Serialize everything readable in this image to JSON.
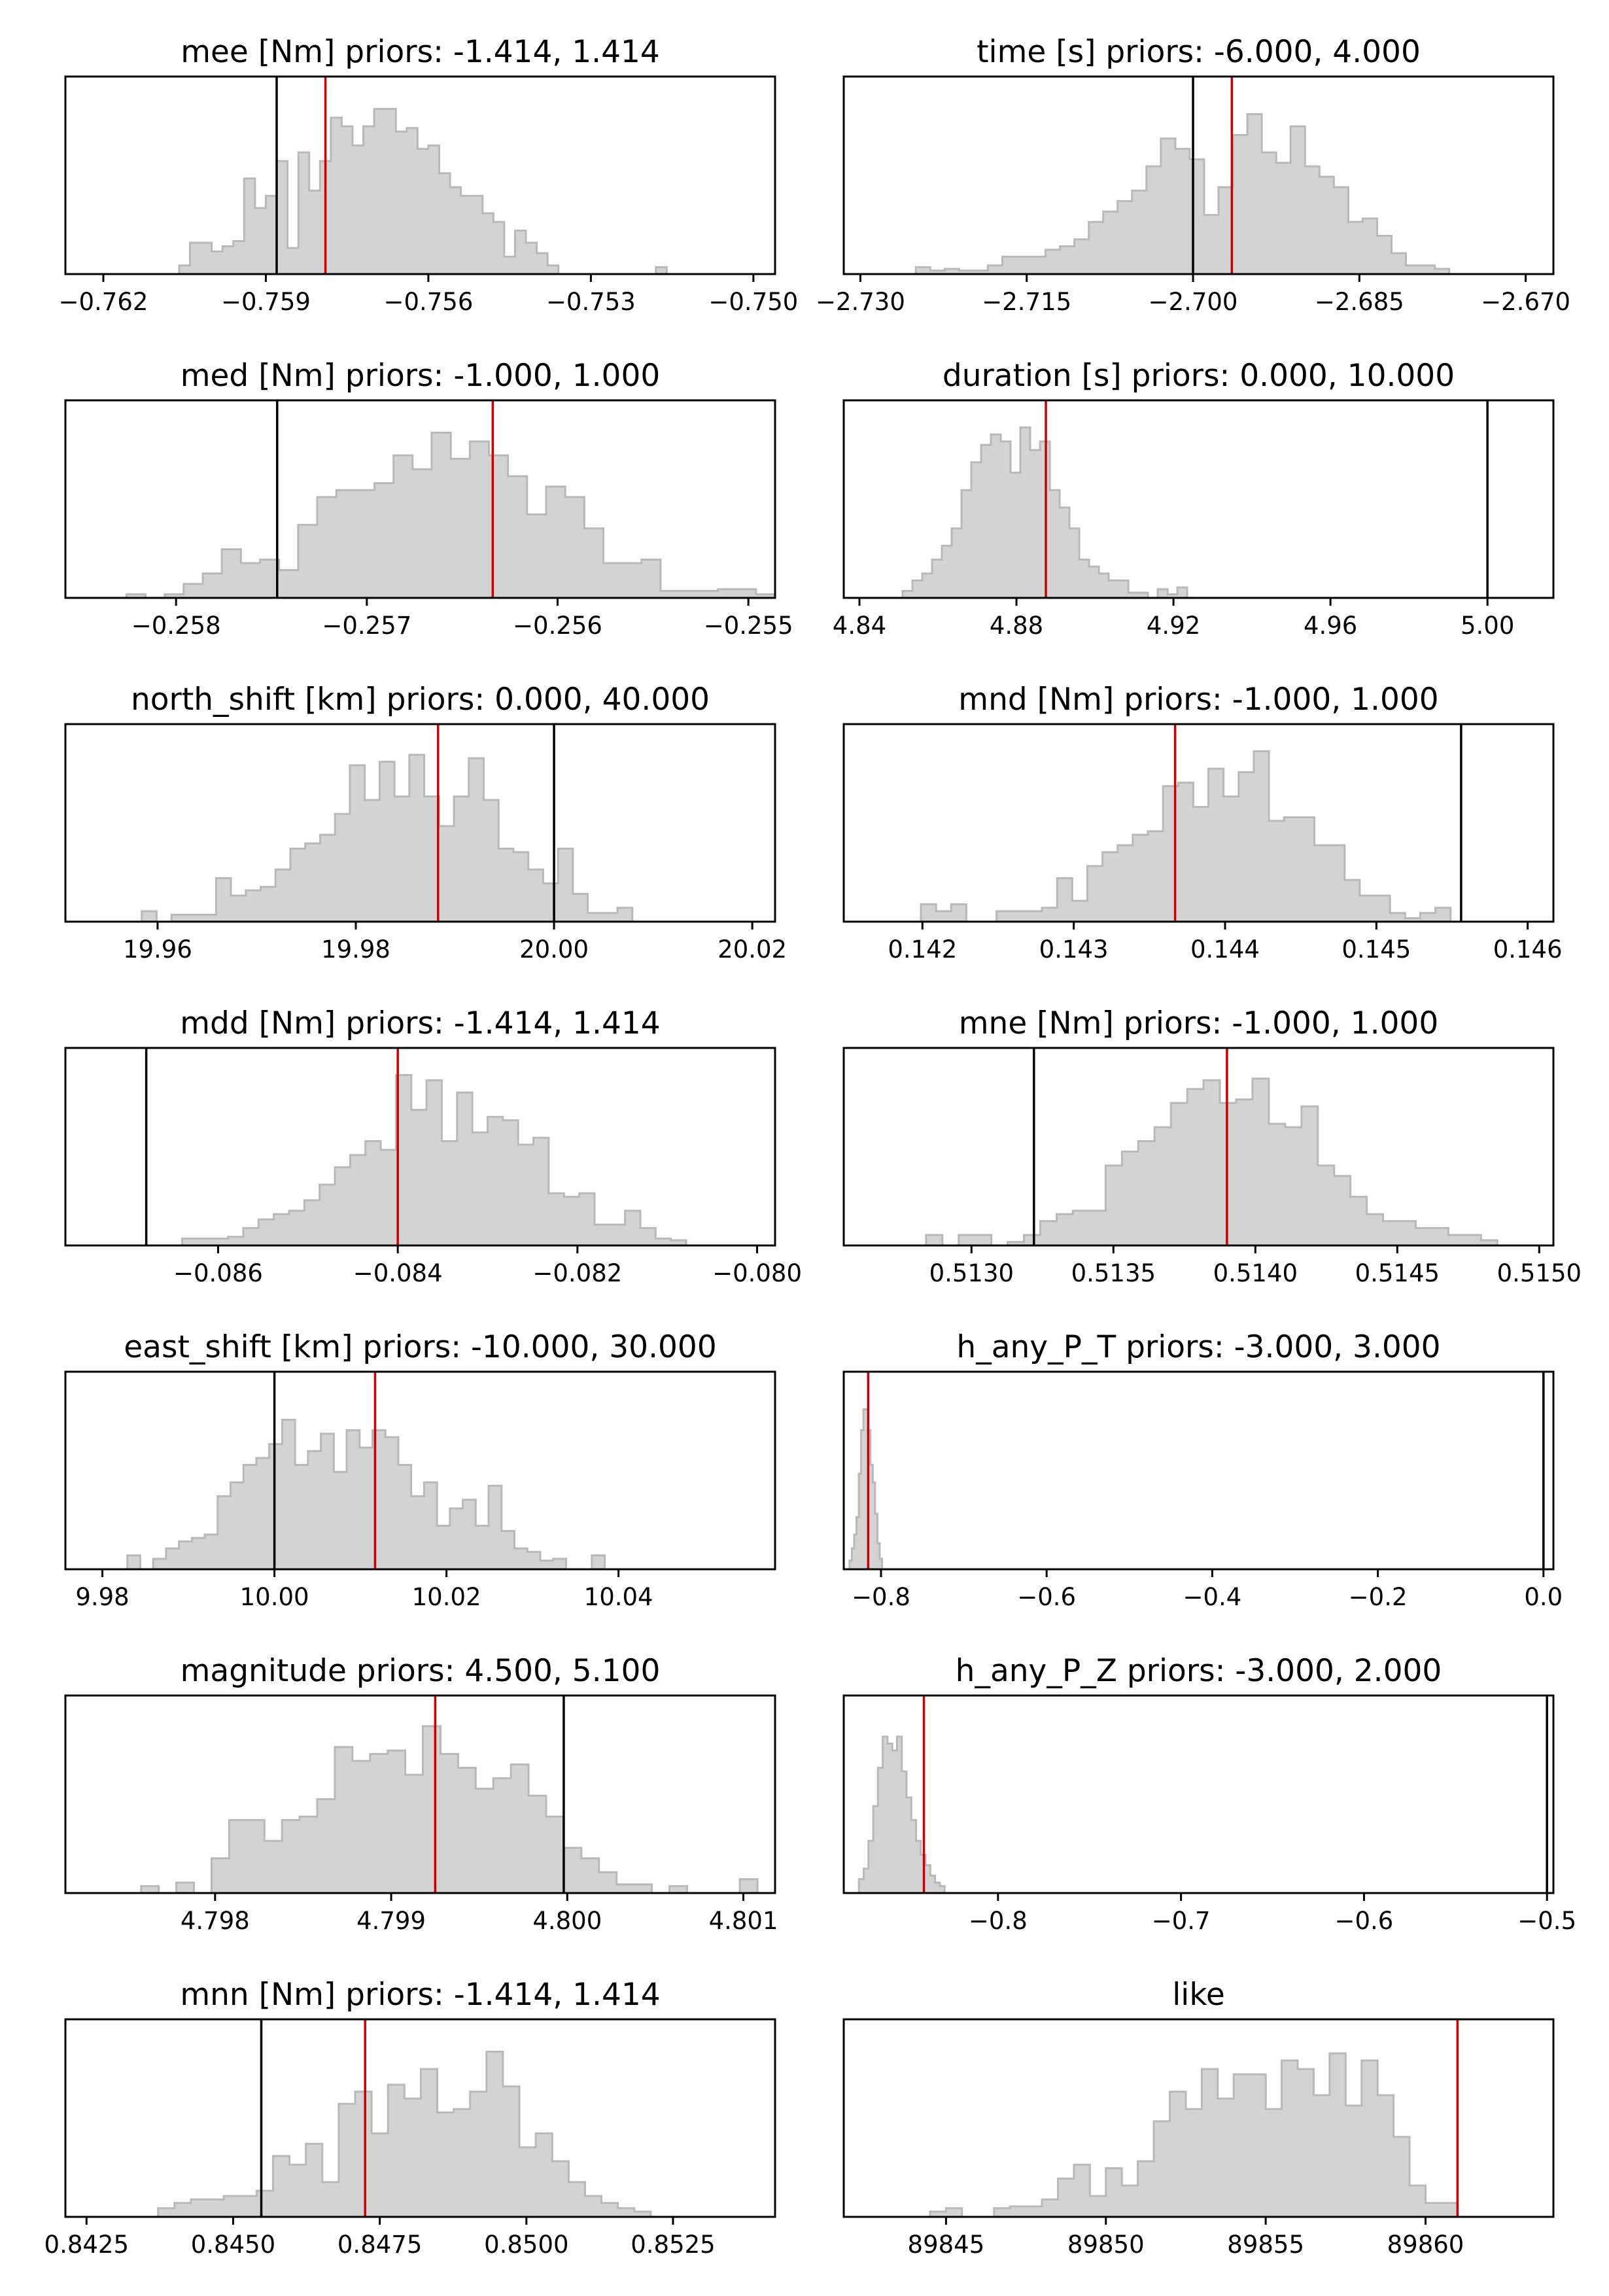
{
  "colors": {
    "hist_fill": "#d3d3d3",
    "hist_edge": "#b9b9b9",
    "true_line": "#000000",
    "estimate_line": "#cc0000",
    "frame": "#000000"
  },
  "chart_data": [
    {
      "type": "bar",
      "title": "mee [Nm] priors: -1.414, 1.414",
      "xlim": [
        -0.7627,
        -0.7496
      ],
      "xticks": [
        -0.762,
        -0.759,
        -0.756,
        -0.753,
        -0.75
      ],
      "xtick_labels": [
        "−0.762",
        "−0.759",
        "−0.756",
        "−0.753",
        "−0.750"
      ],
      "ylim": [
        0,
        1
      ],
      "bins": {
        "start": -0.7606,
        "width": 0.0002,
        "counts": [
          0.05,
          0.18,
          0.18,
          0.13,
          0.16,
          0.19,
          0.55,
          0.38,
          0.45,
          0.65,
          0.15,
          0.7,
          0.48,
          0.65,
          0.9,
          0.85,
          0.74,
          0.85,
          0.95,
          0.95,
          0.82,
          0.84,
          0.72,
          0.74,
          0.58,
          0.5,
          0.45,
          0.45,
          0.35,
          0.3,
          0.1,
          0.25,
          0.18,
          0.12,
          0.05,
          0,
          0,
          0,
          0,
          0,
          0,
          0,
          0,
          0,
          0.04
        ]
      },
      "true_value": -0.7588,
      "estimate": -0.7579
    },
    {
      "type": "bar",
      "title": "time [s] priors: -6.000, 4.000",
      "xlim": [
        -2.7315,
        -2.6675
      ],
      "xticks": [
        -2.73,
        -2.715,
        -2.7,
        -2.685,
        -2.67
      ],
      "xtick_labels": [
        "−2.730",
        "−2.715",
        "−2.700",
        "−2.685",
        "−2.670"
      ],
      "ylim": [
        0,
        1
      ],
      "bins": {
        "start": -2.725,
        "width": 0.0013,
        "counts": [
          0.04,
          0.02,
          0.03,
          0.02,
          0.02,
          0.05,
          0.1,
          0.1,
          0.1,
          0.14,
          0.16,
          0.2,
          0.3,
          0.36,
          0.42,
          0.48,
          0.62,
          0.78,
          0.72,
          0.66,
          0.34,
          0.5,
          0.8,
          0.92,
          0.7,
          0.64,
          0.85,
          0.62,
          0.56,
          0.5,
          0.3,
          0.32,
          0.22,
          0.12,
          0.05,
          0.05,
          0.03
        ]
      },
      "true_value": -2.7,
      "estimate": -2.6965
    },
    {
      "type": "bar",
      "title": "med [Nm] priors: -1.000, 1.000",
      "xlim": [
        -0.25858,
        -0.25486
      ],
      "xticks": [
        -0.258,
        -0.257,
        -0.256,
        -0.255
      ],
      "xtick_labels": [
        "−0.258",
        "−0.257",
        "−0.256",
        "−0.255"
      ],
      "ylim": [
        0,
        1
      ],
      "bins": {
        "start": -0.25826,
        "width": 0.0001,
        "counts": [
          0.02,
          0,
          0.02,
          0.08,
          0.14,
          0.28,
          0.2,
          0.22,
          0.16,
          0.42,
          0.58,
          0.62,
          0.62,
          0.66,
          0.82,
          0.74,
          0.95,
          0.8,
          0.9,
          0.82,
          0.7,
          0.48,
          0.64,
          0.58,
          0.4,
          0.2,
          0.2,
          0.22,
          0.04,
          0.04,
          0.04,
          0.05,
          0.05,
          0.02
        ]
      },
      "true_value": -0.25747,
      "estimate": -0.25634
    },
    {
      "type": "bar",
      "title": "duration [s] priors: 0.000, 10.000",
      "xlim": [
        4.836,
        5.0168
      ],
      "xticks": [
        4.84,
        4.88,
        4.92,
        4.96,
        5.0
      ],
      "xtick_labels": [
        "4.84",
        "4.88",
        "4.92",
        "4.96",
        "5.00"
      ],
      "ylim": [
        0,
        1
      ],
      "bins": {
        "start": 4.851,
        "width": 0.0025,
        "counts": [
          0.04,
          0.1,
          0.14,
          0.22,
          0.3,
          0.4,
          0.62,
          0.78,
          0.88,
          0.94,
          0.9,
          0.72,
          0.98,
          0.85,
          0.9,
          0.62,
          0.52,
          0.4,
          0.22,
          0.18,
          0.14,
          0.1,
          0.1,
          0.03,
          0.03,
          0,
          0.05,
          0.02,
          0.06
        ]
      },
      "true_value": 5.0,
      "estimate": 4.8875
    },
    {
      "type": "bar",
      "title": "north_shift [km] priors: 0.000, 40.000",
      "xlim": [
        19.9507,
        20.0223
      ],
      "xticks": [
        19.96,
        19.98,
        20.0,
        20.02
      ],
      "xtick_labels": [
        "19.96",
        "19.98",
        "20.00",
        "20.02"
      ],
      "ylim": [
        0,
        1
      ],
      "bins": {
        "start": 19.9584,
        "width": 0.0015,
        "counts": [
          0.06,
          0,
          0.04,
          0.04,
          0.04,
          0.25,
          0.15,
          0.18,
          0.2,
          0.3,
          0.42,
          0.45,
          0.5,
          0.62,
          0.9,
          0.7,
          0.92,
          0.72,
          0.96,
          0.72,
          0.55,
          0.72,
          0.94,
          0.7,
          0.42,
          0.4,
          0.3,
          0.22,
          0.42,
          0.16,
          0.05,
          0.05,
          0.08
        ]
      },
      "true_value": 20.0,
      "estimate": 19.9883
    },
    {
      "type": "bar",
      "title": "mnd [Nm] priors: -1.000, 1.000",
      "xlim": [
        0.14148,
        0.14617
      ],
      "xticks": [
        0.142,
        0.143,
        0.144,
        0.145,
        0.146
      ],
      "xtick_labels": [
        "0.142",
        "0.143",
        "0.144",
        "0.145",
        "0.146"
      ],
      "ylim": [
        0,
        1
      ],
      "bins": {
        "start": 0.14199,
        "width": 0.0001,
        "counts": [
          0.1,
          0.06,
          0.1,
          0,
          0,
          0.06,
          0.06,
          0.06,
          0.08,
          0.25,
          0.12,
          0.32,
          0.4,
          0.44,
          0.5,
          0.52,
          0.78,
          0.8,
          0.66,
          0.88,
          0.72,
          0.86,
          0.98,
          0.58,
          0.6,
          0.6,
          0.44,
          0.44,
          0.24,
          0.15,
          0.15,
          0.05,
          0.02,
          0.05,
          0.08
        ]
      },
      "true_value": 0.14556,
      "estimate": 0.14367
    },
    {
      "type": "bar",
      "title": "mdd [Nm] priors: -1.414, 1.414",
      "xlim": [
        -0.0877,
        -0.0798
      ],
      "xticks": [
        -0.086,
        -0.084,
        -0.082,
        -0.08
      ],
      "xtick_labels": [
        "−0.086",
        "−0.084",
        "−0.082",
        "−0.080"
      ],
      "ylim": [
        0,
        1
      ],
      "bins": {
        "start": -0.0864,
        "width": 0.00017,
        "counts": [
          0.04,
          0.04,
          0.04,
          0.05,
          0.1,
          0.15,
          0.18,
          0.2,
          0.26,
          0.35,
          0.45,
          0.52,
          0.6,
          0.55,
          0.98,
          0.78,
          0.95,
          0.6,
          0.88,
          0.65,
          0.74,
          0.72,
          0.58,
          0.62,
          0.3,
          0.28,
          0.3,
          0.12,
          0.12,
          0.2,
          0.1,
          0.04,
          0.03
        ]
      },
      "true_value": -0.0868,
      "estimate": -0.084
    },
    {
      "type": "bar",
      "title": "mne [Nm] priors: -1.000, 1.000",
      "xlim": [
        0.51255,
        0.51505
      ],
      "xticks": [
        0.513,
        0.5135,
        0.514,
        0.5145,
        0.515
      ],
      "xtick_labels": [
        "0.5130",
        "0.5135",
        "0.5140",
        "0.5145",
        "0.5150"
      ],
      "ylim": [
        0,
        1
      ],
      "bins": {
        "start": 0.51284,
        "width": 5.75e-05,
        "counts": [
          0.06,
          0,
          0.06,
          0.06,
          0,
          0.02,
          0.06,
          0.14,
          0.18,
          0.2,
          0.2,
          0.46,
          0.54,
          0.6,
          0.68,
          0.82,
          0.9,
          0.95,
          0.82,
          0.84,
          0.96,
          0.7,
          0.68,
          0.8,
          0.46,
          0.4,
          0.28,
          0.18,
          0.14,
          0.14,
          0.1,
          0.1,
          0.06,
          0.06,
          0.03
        ]
      },
      "true_value": 0.51322,
      "estimate": 0.5139
    },
    {
      "type": "bar",
      "title": "east_shift [km] priors: -10.000, 30.000",
      "xlim": [
        9.9757,
        10.0582
      ],
      "xticks": [
        9.98,
        10.0,
        10.02,
        10.04
      ],
      "xtick_labels": [
        "9.98",
        "10.00",
        "10.02",
        "10.04"
      ],
      "ylim": [
        0,
        1
      ],
      "bins": {
        "start": 9.9829,
        "width": 0.0015,
        "counts": [
          0.08,
          0,
          0.06,
          0.12,
          0.16,
          0.18,
          0.2,
          0.42,
          0.5,
          0.6,
          0.64,
          0.72,
          0.86,
          0.6,
          0.68,
          0.78,
          0.56,
          0.8,
          0.7,
          0.8,
          0.76,
          0.6,
          0.42,
          0.5,
          0.25,
          0.35,
          0.4,
          0.25,
          0.48,
          0.22,
          0.12,
          0.1,
          0.05,
          0.06,
          0,
          0,
          0.08
        ]
      },
      "true_value": 10.0,
      "estimate": 10.0117
    },
    {
      "type": "bar",
      "title": "h_any_P_T  priors: -3.000, 3.000",
      "xlim": [
        -0.845,
        0.012
      ],
      "xticks": [
        -0.8,
        -0.6,
        -0.4,
        -0.2,
        0.0
      ],
      "xtick_labels": [
        "−0.8",
        "−0.6",
        "−0.4",
        "−0.2",
        "0.0"
      ],
      "ylim": [
        0,
        1
      ],
      "bins": {
        "start": -0.838,
        "width": 0.0028,
        "counts": [
          0.05,
          0.12,
          0.2,
          0.3,
          0.55,
          0.8,
          0.92,
          0.92,
          0.8,
          0.6,
          0.5,
          0.32,
          0.15,
          0.06
        ]
      },
      "true_value": 0.0,
      "estimate": -0.8155
    },
    {
      "type": "bar",
      "title": "magnitude  priors: 4.500, 5.100",
      "xlim": [
        4.79715,
        4.80118
      ],
      "xticks": [
        4.798,
        4.799,
        4.8,
        4.801
      ],
      "xtick_labels": [
        "4.798",
        "4.799",
        "4.800",
        "4.801"
      ],
      "ylim": [
        0,
        1
      ],
      "bins": {
        "start": 4.79758,
        "width": 0.0001,
        "counts": [
          0.04,
          0,
          0.06,
          0,
          0.2,
          0.42,
          0.42,
          0.3,
          0.42,
          0.44,
          0.54,
          0.84,
          0.76,
          0.8,
          0.82,
          0.68,
          0.96,
          0.8,
          0.72,
          0.6,
          0.66,
          0.74,
          0.56,
          0.44,
          0.26,
          0.2,
          0.12,
          0.05,
          0.05,
          0,
          0.04,
          0,
          0,
          0,
          0.08
        ]
      },
      "true_value": 4.79998,
      "estimate": 4.79925
    },
    {
      "type": "bar",
      "title": "h_any_P_Z  priors: -3.000, 2.000",
      "xlim": [
        -0.8843,
        -0.4965
      ],
      "xticks": [
        -0.8,
        -0.7,
        -0.6,
        -0.5
      ],
      "xtick_labels": [
        "−0.8",
        "−0.7",
        "−0.6",
        "−0.5"
      ],
      "ylim": [
        0,
        1
      ],
      "bins": {
        "start": -0.876,
        "width": 0.0026,
        "counts": [
          0.08,
          0.14,
          0.3,
          0.5,
          0.72,
          0.9,
          0.86,
          0.82,
          0.9,
          0.7,
          0.55,
          0.42,
          0.3,
          0.22,
          0.16,
          0.1,
          0.06,
          0.04
        ]
      },
      "true_value": -0.5,
      "estimate": -0.8405
    },
    {
      "type": "bar",
      "title": "mnn [Nm] priors: -1.414, 1.414",
      "xlim": [
        0.84214,
        0.85424
      ],
      "xticks": [
        0.8425,
        0.845,
        0.8475,
        0.85,
        0.8525
      ],
      "xtick_labels": [
        "0.8425",
        "0.8450",
        "0.8475",
        "0.8500",
        "0.8525"
      ],
      "ylim": [
        0,
        1
      ],
      "bins": {
        "start": 0.84372,
        "width": 0.00028,
        "counts": [
          0.05,
          0.08,
          0.1,
          0.1,
          0.12,
          0.12,
          0.15,
          0.35,
          0.3,
          0.42,
          0.2,
          0.65,
          0.72,
          0.48,
          0.76,
          0.68,
          0.85,
          0.6,
          0.62,
          0.72,
          0.95,
          0.75,
          0.4,
          0.48,
          0.32,
          0.2,
          0.12,
          0.08,
          0.05,
          0.03
        ]
      },
      "true_value": 0.84548,
      "estimate": 0.84725
    },
    {
      "type": "bar",
      "title": "like",
      "xlim": [
        89841.8,
        89864.0
      ],
      "xticks": [
        89845,
        89850,
        89855,
        89860
      ],
      "xtick_labels": [
        "89845",
        "89850",
        "89855",
        "89860"
      ],
      "ylim": [
        0,
        1
      ],
      "bins": {
        "start": 89844.5,
        "width": 0.5,
        "counts": [
          0.03,
          0.05,
          0,
          0,
          0.05,
          0.06,
          0.06,
          0.1,
          0.22,
          0.3,
          0.12,
          0.28,
          0.18,
          0.32,
          0.55,
          0.72,
          0.62,
          0.85,
          0.68,
          0.82,
          0.82,
          0.62,
          0.9,
          0.85,
          0.7,
          0.94,
          0.64,
          0.9,
          0.7,
          0.46,
          0.18,
          0.08,
          0.08
        ]
      },
      "true_value": null,
      "estimate": 89861.0
    }
  ]
}
